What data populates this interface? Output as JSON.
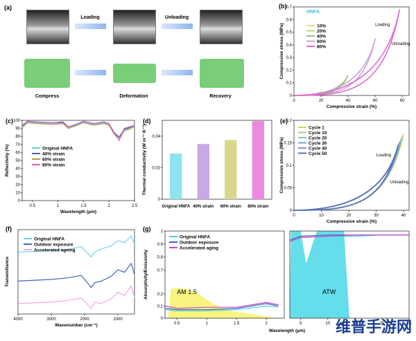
{
  "panels": {
    "a": "(a)",
    "b": "(b)",
    "c": "(c)",
    "d": "(d)",
    "e": "(e)",
    "f": "(f)",
    "g": "(g)"
  },
  "a": {
    "loading": "Loading",
    "unloading": "Unloading",
    "compress": "Compress",
    "deformation": "Deformation",
    "recovery": "Recovery"
  },
  "chart_data": [
    {
      "id": "b",
      "type": "line",
      "title": "HNFA",
      "xlabel": "Compressive strain (%)",
      "ylabel": "Compressive stress (MPa)",
      "xlim": [
        0,
        85
      ],
      "ylim": [
        0,
        0.7
      ],
      "xticks": [
        0,
        20,
        40,
        60,
        80
      ],
      "yticks": [
        0,
        0.1,
        0.2,
        0.3,
        0.4,
        0.5,
        0.6,
        0.7
      ],
      "legend": "top-left",
      "annotations": [
        "Loading",
        "Unloading"
      ],
      "series": [
        {
          "name": "10%",
          "color": "#e3e07a",
          "x": [
            0,
            10,
            10,
            0
          ],
          "y": [
            0,
            0.012,
            0.012,
            0
          ]
        },
        {
          "name": "20%",
          "color": "#b8d67a",
          "x": [
            0,
            20,
            20,
            0
          ],
          "y": [
            0,
            0.03,
            0.03,
            0
          ]
        },
        {
          "name": "40%",
          "color": "#9fc37a",
          "x": [
            0,
            40,
            40,
            0
          ],
          "y": [
            0,
            0.16,
            0.16,
            0
          ]
        },
        {
          "name": "60%",
          "color": "#c9a5d8",
          "x": [
            0,
            60,
            60,
            0
          ],
          "y": [
            0,
            0.45,
            0.45,
            0
          ]
        },
        {
          "name": "80%",
          "color": "#e06ad0",
          "x": [
            0,
            78,
            78,
            0
          ],
          "y": [
            0,
            0.68,
            0.68,
            0
          ]
        }
      ]
    },
    {
      "id": "c",
      "type": "line",
      "xlabel": "Wavelength (μm)",
      "ylabel": "Reflectivity (%)",
      "xlim": [
        0.3,
        2.5
      ],
      "ylim": [
        0,
        100
      ],
      "xticks": [
        0.5,
        1.0,
        1.5,
        2.0,
        2.5
      ],
      "yticks": [
        0,
        10,
        20,
        30,
        40,
        50,
        60,
        70,
        80,
        90,
        100
      ],
      "legend": "center-left",
      "series": [
        {
          "name": "Original HNFA",
          "color": "#5fd3e6",
          "x": [
            0.3,
            0.4,
            0.6,
            0.9,
            1.1,
            1.2,
            1.35,
            1.5,
            1.7,
            1.9,
            2.0,
            2.1,
            2.2,
            2.3,
            2.4,
            2.5
          ],
          "y": [
            92,
            98,
            97,
            96,
            97,
            91,
            94,
            98,
            95,
            97,
            95,
            84,
            80,
            88,
            90,
            93
          ]
        },
        {
          "name": "40% strain",
          "color": "#4067b8",
          "x": [
            0.3,
            0.4,
            0.6,
            0.9,
            1.1,
            1.2,
            1.35,
            1.5,
            1.7,
            1.9,
            2.0,
            2.1,
            2.2,
            2.3,
            2.4,
            2.5
          ],
          "y": [
            93,
            99,
            98,
            97,
            98,
            92,
            95,
            99,
            96,
            98,
            96,
            85,
            79,
            89,
            91,
            94
          ]
        },
        {
          "name": "60% strain",
          "color": "#b59a3a",
          "x": [
            0.3,
            0.4,
            0.6,
            0.9,
            1.1,
            1.2,
            1.35,
            1.5,
            1.7,
            1.9,
            2.0,
            2.1,
            2.2,
            2.3,
            2.4,
            2.5
          ],
          "y": [
            91,
            97,
            96,
            95,
            96,
            90,
            93,
            97,
            94,
            96,
            94,
            83,
            78,
            87,
            89,
            92
          ]
        },
        {
          "name": "80% strain",
          "color": "#e05cc9",
          "x": [
            0.3,
            0.4,
            0.6,
            0.9,
            1.1,
            1.2,
            1.35,
            1.5,
            1.7,
            1.9,
            2.0,
            2.1,
            2.2,
            2.3,
            2.4,
            2.5
          ],
          "y": [
            94,
            99,
            98,
            97,
            97,
            92,
            95,
            99,
            96,
            98,
            96,
            84,
            75,
            90,
            92,
            94
          ]
        }
      ]
    },
    {
      "id": "d",
      "type": "bar",
      "ylabel": "Thermal conductivity (W m⁻¹ K⁻¹)",
      "ylim": [
        0,
        0.05
      ],
      "yticks": [
        0,
        0.02,
        0.04
      ],
      "categories": [
        "Original HNFA",
        "40% strain",
        "60% strain",
        "80% strain"
      ],
      "values": [
        0.029,
        0.035,
        0.0375,
        0.0495
      ],
      "colors": [
        "#8fe3ef",
        "#c8a9e6",
        "#d8d88c",
        "#ec8ae0"
      ]
    },
    {
      "id": "e",
      "type": "line",
      "xlabel": "Compressive strain (%)",
      "ylabel": "Compressive stress (MPa)",
      "xlim": [
        0,
        42
      ],
      "ylim": [
        0,
        0.2
      ],
      "xticks": [
        0,
        10,
        20,
        30,
        40
      ],
      "yticks": [
        0,
        0.05,
        0.1,
        0.15,
        0.2
      ],
      "legend": "top-left",
      "annotations": [
        "Loading",
        "Unloading"
      ],
      "series": [
        {
          "name": "Cycle 1",
          "color": "#d6d45a",
          "x": [
            0,
            40,
            40,
            0
          ],
          "y": [
            0,
            0.17,
            0.17,
            0
          ]
        },
        {
          "name": "Cycle 10",
          "color": "#a9d07a",
          "x": [
            0,
            39.6,
            39.6,
            0
          ],
          "y": [
            0,
            0.165,
            0.165,
            0
          ]
        },
        {
          "name": "Cycle 20",
          "color": "#7fc6c6",
          "x": [
            0,
            39.2,
            39.2,
            0
          ],
          "y": [
            0,
            0.16,
            0.16,
            0
          ]
        },
        {
          "name": "Cycle 30",
          "color": "#6aa9d8",
          "x": [
            0,
            38.8,
            38.8,
            0
          ],
          "y": [
            0,
            0.155,
            0.155,
            0
          ]
        },
        {
          "name": "Cycle 40",
          "color": "#8f8fd8",
          "x": [
            0,
            38.4,
            38.4,
            0
          ],
          "y": [
            0,
            0.15,
            0.15,
            0
          ]
        },
        {
          "name": "Cycle 50",
          "color": "#5a6fb8",
          "x": [
            0,
            38,
            38,
            0
          ],
          "y": [
            0,
            0.145,
            0.145,
            0
          ]
        }
      ]
    },
    {
      "id": "f",
      "type": "line",
      "xlabel": "Wavenumber (cm⁻¹)",
      "ylabel": "Transmittance",
      "xlim": [
        4000,
        500
      ],
      "xticks": [
        4000,
        3000,
        2000,
        1000
      ],
      "legend": "top-left",
      "series": [
        {
          "name": "Original HNFA",
          "color": "#6fd6e6",
          "x": [
            4000,
            3000,
            2500,
            2100,
            1800,
            1700,
            1500,
            1200,
            1000,
            800,
            600,
            500
          ],
          "y": [
            0.72,
            0.74,
            0.75,
            0.79,
            0.66,
            0.72,
            0.76,
            0.8,
            0.86,
            0.84,
            0.92,
            0.82
          ]
        },
        {
          "name": "Outdoor exposure",
          "color": "#4067b8",
          "x": [
            4000,
            3000,
            2500,
            2100,
            1800,
            1700,
            1500,
            1200,
            1000,
            800,
            600,
            500
          ],
          "y": [
            0.36,
            0.38,
            0.4,
            0.43,
            0.28,
            0.34,
            0.36,
            0.42,
            0.5,
            0.47,
            0.58,
            0.44
          ]
        },
        {
          "name": "Accelerated ageing",
          "color": "#f0a8e3",
          "x": [
            4000,
            3000,
            2500,
            2100,
            1800,
            1700,
            1500,
            1200,
            1000,
            800,
            600,
            500
          ],
          "y": [
            0.08,
            0.1,
            0.12,
            0.15,
            0.02,
            0.1,
            0.08,
            0.14,
            0.22,
            0.18,
            0.3,
            0.16
          ]
        }
      ]
    },
    {
      "id": "g",
      "type": "line",
      "xlabel": "Wavelength (μm)",
      "ylabel": "Absorptivity/Emissivity",
      "ylim": [
        0,
        1
      ],
      "yticks": [
        0,
        0.1,
        0.2,
        0.7,
        0.8,
        0.9,
        1.0
      ],
      "xticks": [
        0.5,
        1.0,
        1.5,
        2.0,
        5,
        10,
        15,
        20,
        25
      ],
      "legend": "top-left",
      "annotations": [
        "AM 1.5",
        "ATW"
      ],
      "series": [
        {
          "name": "Original HNFA",
          "color": "#3fd0e6",
          "x": [
            0.3,
            0.5,
            1.0,
            1.5,
            2.0,
            2.2,
            3,
            5,
            10,
            15,
            20,
            25
          ],
          "y": [
            0.07,
            0.06,
            0.06,
            0.07,
            0.1,
            0.09,
            0.92,
            0.95,
            0.96,
            0.96,
            0.97,
            0.97
          ]
        },
        {
          "name": "Outdoor exposure",
          "color": "#4067b8",
          "x": [
            0.3,
            0.5,
            1.0,
            1.5,
            2.0,
            2.2,
            3,
            5,
            10,
            15,
            20,
            25
          ],
          "y": [
            0.08,
            0.07,
            0.07,
            0.08,
            0.12,
            0.1,
            0.93,
            0.96,
            0.97,
            0.97,
            0.97,
            0.97
          ]
        },
        {
          "name": "Accelerated aging",
          "color": "#d640c9",
          "x": [
            0.3,
            0.5,
            1.0,
            1.5,
            2.0,
            2.2,
            3,
            5,
            10,
            15,
            20,
            25
          ],
          "y": [
            0.1,
            0.08,
            0.09,
            0.09,
            0.13,
            0.11,
            0.92,
            0.95,
            0.96,
            0.97,
            0.97,
            0.97
          ]
        }
      ]
    }
  ],
  "watermark": "维普手游网"
}
